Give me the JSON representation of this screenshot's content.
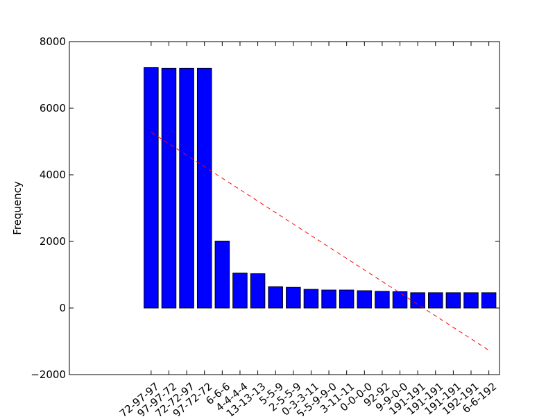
{
  "chart_data": {
    "type": "bar",
    "title": "",
    "xlabel": "",
    "ylabel": "Frequency",
    "ylim": [
      -2000,
      8000
    ],
    "yticks": [
      -2000,
      0,
      2000,
      4000,
      6000,
      8000
    ],
    "ytick_labels": [
      "−2000",
      "0",
      "2000",
      "4000",
      "6000",
      "8000"
    ],
    "grid": false,
    "bar_color": "#0000ff",
    "trend_color": "#ff0000",
    "categories": [
      "72-97-97",
      "97-97-72",
      "72-72-97",
      "97-72-72",
      "6-6-6",
      "4-4-4-4",
      "13-13-13",
      "5-5-9",
      "2-5-5-9",
      "0-3-3-11",
      "5-5-9-9-0",
      "3-11-11",
      "0-0-0-0",
      "92-92",
      "9-9-0-0",
      "191-191",
      "191-191",
      "191-191",
      "192-191",
      "6-6-192"
    ],
    "values": [
      7220,
      7200,
      7200,
      7200,
      2010,
      1050,
      1030,
      640,
      620,
      560,
      540,
      540,
      520,
      500,
      490,
      460,
      460,
      460,
      460,
      460
    ],
    "trendline": {
      "style": "dashed",
      "start_value": 5280,
      "end_value": -1270
    }
  }
}
